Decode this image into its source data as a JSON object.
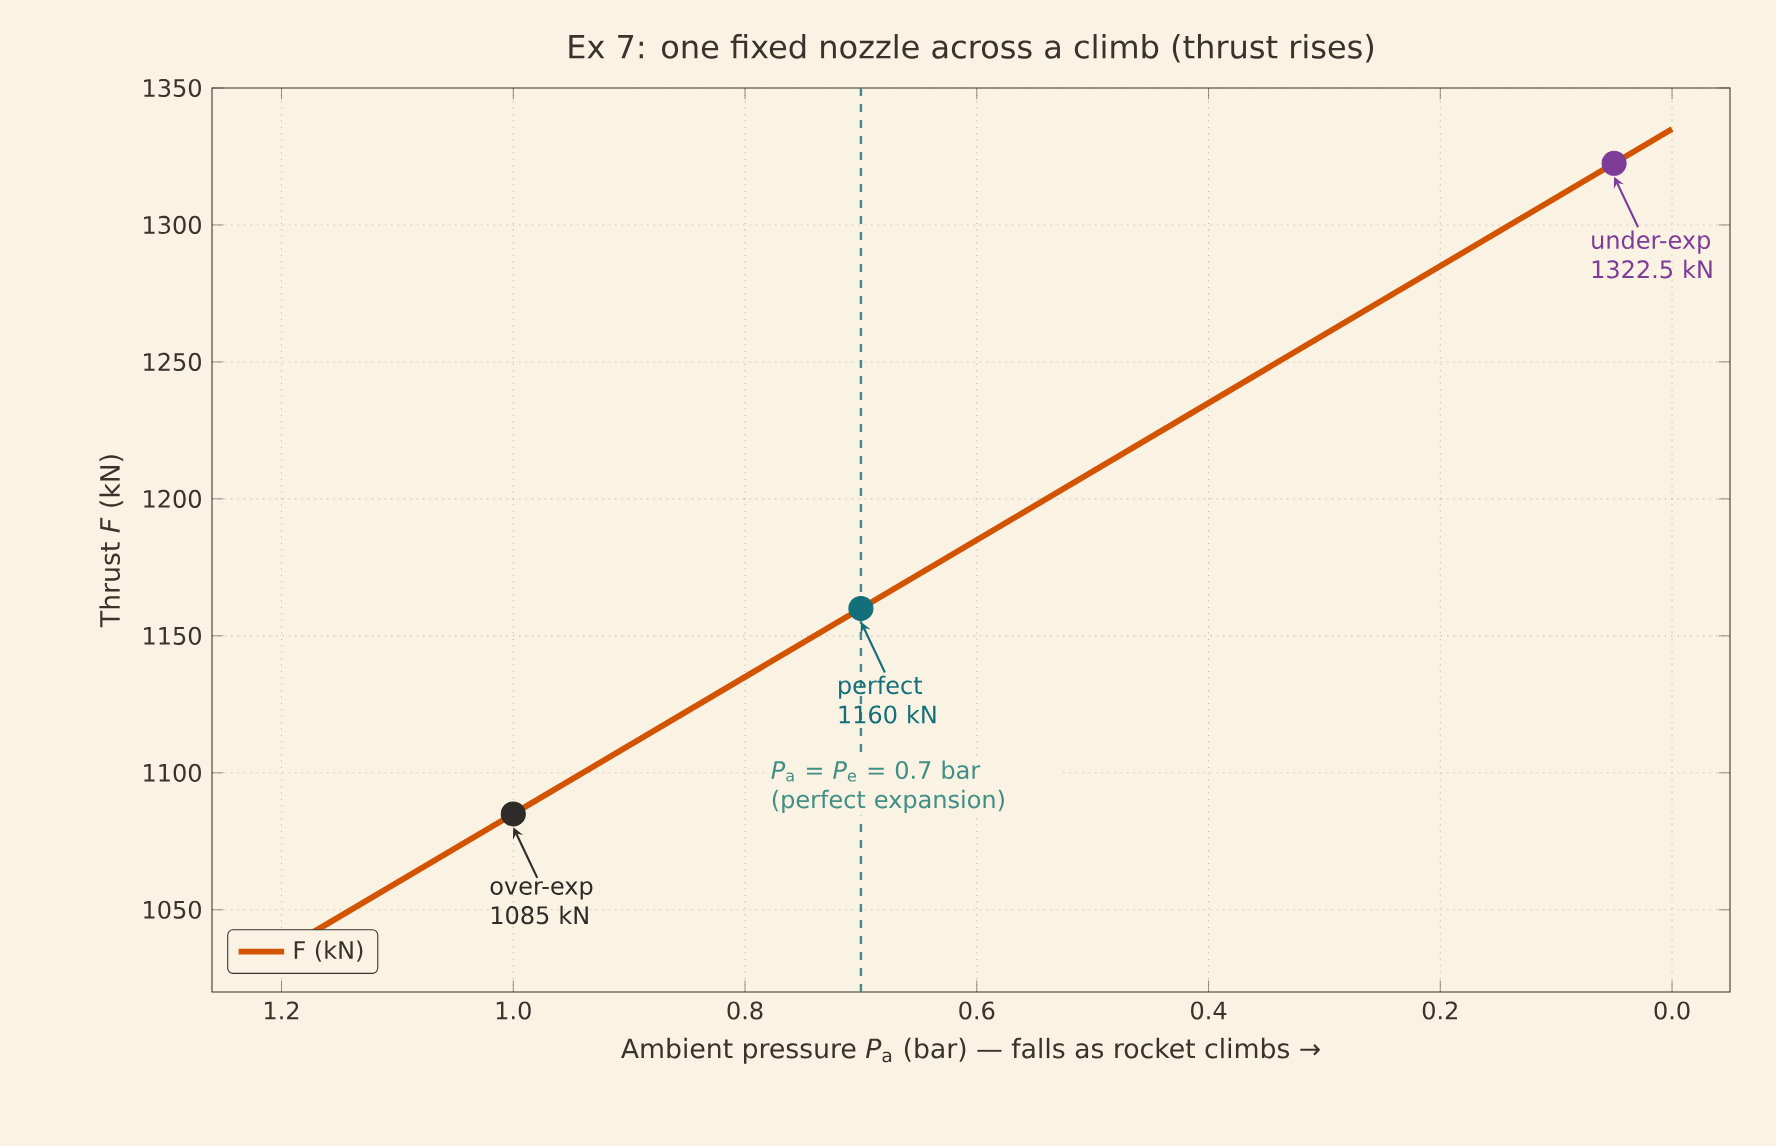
{
  "chart_data": {
    "type": "line",
    "title": "Ex 7: one fixed nozzle across a climb (thrust rises)",
    "xlabel": "Ambient pressure *P*$_{a}$  (bar)   — falls as rocket climbs →",
    "ylabel": "Thrust *F*  (kN)",
    "x": [
      1.2,
      0.0
    ],
    "series": [
      {
        "name": "F (kN)",
        "color": "#d35400",
        "values": [
          1035,
          1335
        ],
        "marker": "none"
      },
      {
        "type": "scatter",
        "x": [
          1.0,
          0.7,
          0.05
        ],
        "values": [
          1085,
          1160,
          1322.5
        ],
        "colors": [
          "#2e2b28",
          "#136f7a",
          "#7d3c98"
        ],
        "marker": "circle"
      }
    ],
    "annotations": [
      {
        "text": "over-exp 1085 kN",
        "x": 1.0,
        "y": 1085
      },
      {
        "text": "perfect 1160 kN",
        "x": 0.7,
        "y": 1160
      },
      {
        "text": "under-exp 1322.5 kN",
        "x": 0.05,
        "y": 1322.5
      }
    ],
    "ref_lines": [
      {
        "axis": "x",
        "value": 0.7,
        "label": "*P*$_{a}$ = *P*$_{e}$ = 0.7 bar (perfect expansion)",
        "color": "#3f8f84",
        "line_style": "dashed"
      }
    ],
    "xlim": [
      1.26,
      -0.05
    ],
    "ylim": [
      1020,
      1350
    ],
    "xticks": [
      {
        "value": 1.2,
        "label": "1.2"
      },
      {
        "value": 1.0,
        "label": "1.0"
      },
      {
        "value": 0.8,
        "label": "0.8"
      },
      {
        "value": 0.6,
        "label": "0.6"
      },
      {
        "value": 0.4,
        "label": "0.4"
      },
      {
        "value": 0.2,
        "label": "0.2"
      },
      {
        "value": 0.0,
        "label": "0.0"
      }
    ],
    "yticks": [
      1050,
      1100,
      1150,
      1200,
      1250,
      1300,
      1350
    ],
    "grid": true,
    "legend": "bottom left",
    "line_style": "solid"
  }
}
